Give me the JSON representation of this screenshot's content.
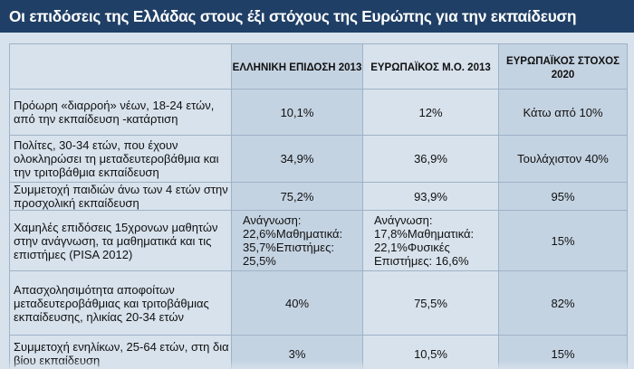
{
  "title": "Οι επιδόσεις της Ελλάδας στους έξι στόχους της Ευρώπης για την εκπαίδευση",
  "headers": [
    "",
    "ΕΛΛΗΝΙΚΗ ΕΠΙΔΟΣΗ 2013",
    "ΕΥΡΩΠΑΪΚΟΣ Μ.Ο. 2013",
    "ΕΥΡΩΠΑΪΚΟΣ ΣΤΟΧΟΣ 2020"
  ],
  "rows": [
    {
      "label": "Πρόωρη «διαρροή» νέων, 18-24 ετών, από την εκπαίδευση -κατάρτιση",
      "greece": "10,1%",
      "eu_avg": "12%",
      "target": "Κάτω από 10%"
    },
    {
      "label": "Πολίτες, 30-34 ετών, που έχουν ολοκληρώσει τη μεταδευτεροβάθμια και την τριτοβάθμια εκπαίδευση",
      "greece": "34,9%",
      "eu_avg": "36,9%",
      "target": "Τουλάχιστον 40%"
    },
    {
      "label": "Συμμετοχή παιδιών άνω των 4 ετών στην προσχολική εκπαίδευση",
      "greece": "75,2%",
      "eu_avg": "93,9%",
      "target": "95%"
    },
    {
      "label": "Χαμηλές επιδόσεις 15χρονων μαθητών στην ανάγνωση, τα μαθηματικά και τις επιστήμες (PISA 2012)",
      "greece": "Ανάγνωση: 22,6%Μαθηματικά: 35,7%Επιστήμες: 25,5%",
      "eu_avg": "Ανάγνωση: 17,8%Μαθηματικά: 22,1%Φυσικές Επιστήμες: 16,6%",
      "target": "15%"
    },
    {
      "label": "Απασχολησιμότητα αποφοίτων μεταδευτεροβάθμιας και τριτοβάθμιας εκπαίδευσης, ηλικίας 20-34 ετών",
      "greece": "40%",
      "eu_avg": "75,5%",
      "target": "82%"
    },
    {
      "label": "Συμμετοχή ενηλίκων, 25-64 ετών, στη δια βίου εκπαίδευση",
      "greece": "3%",
      "eu_avg": "10,5%",
      "target": "15%"
    }
  ]
}
